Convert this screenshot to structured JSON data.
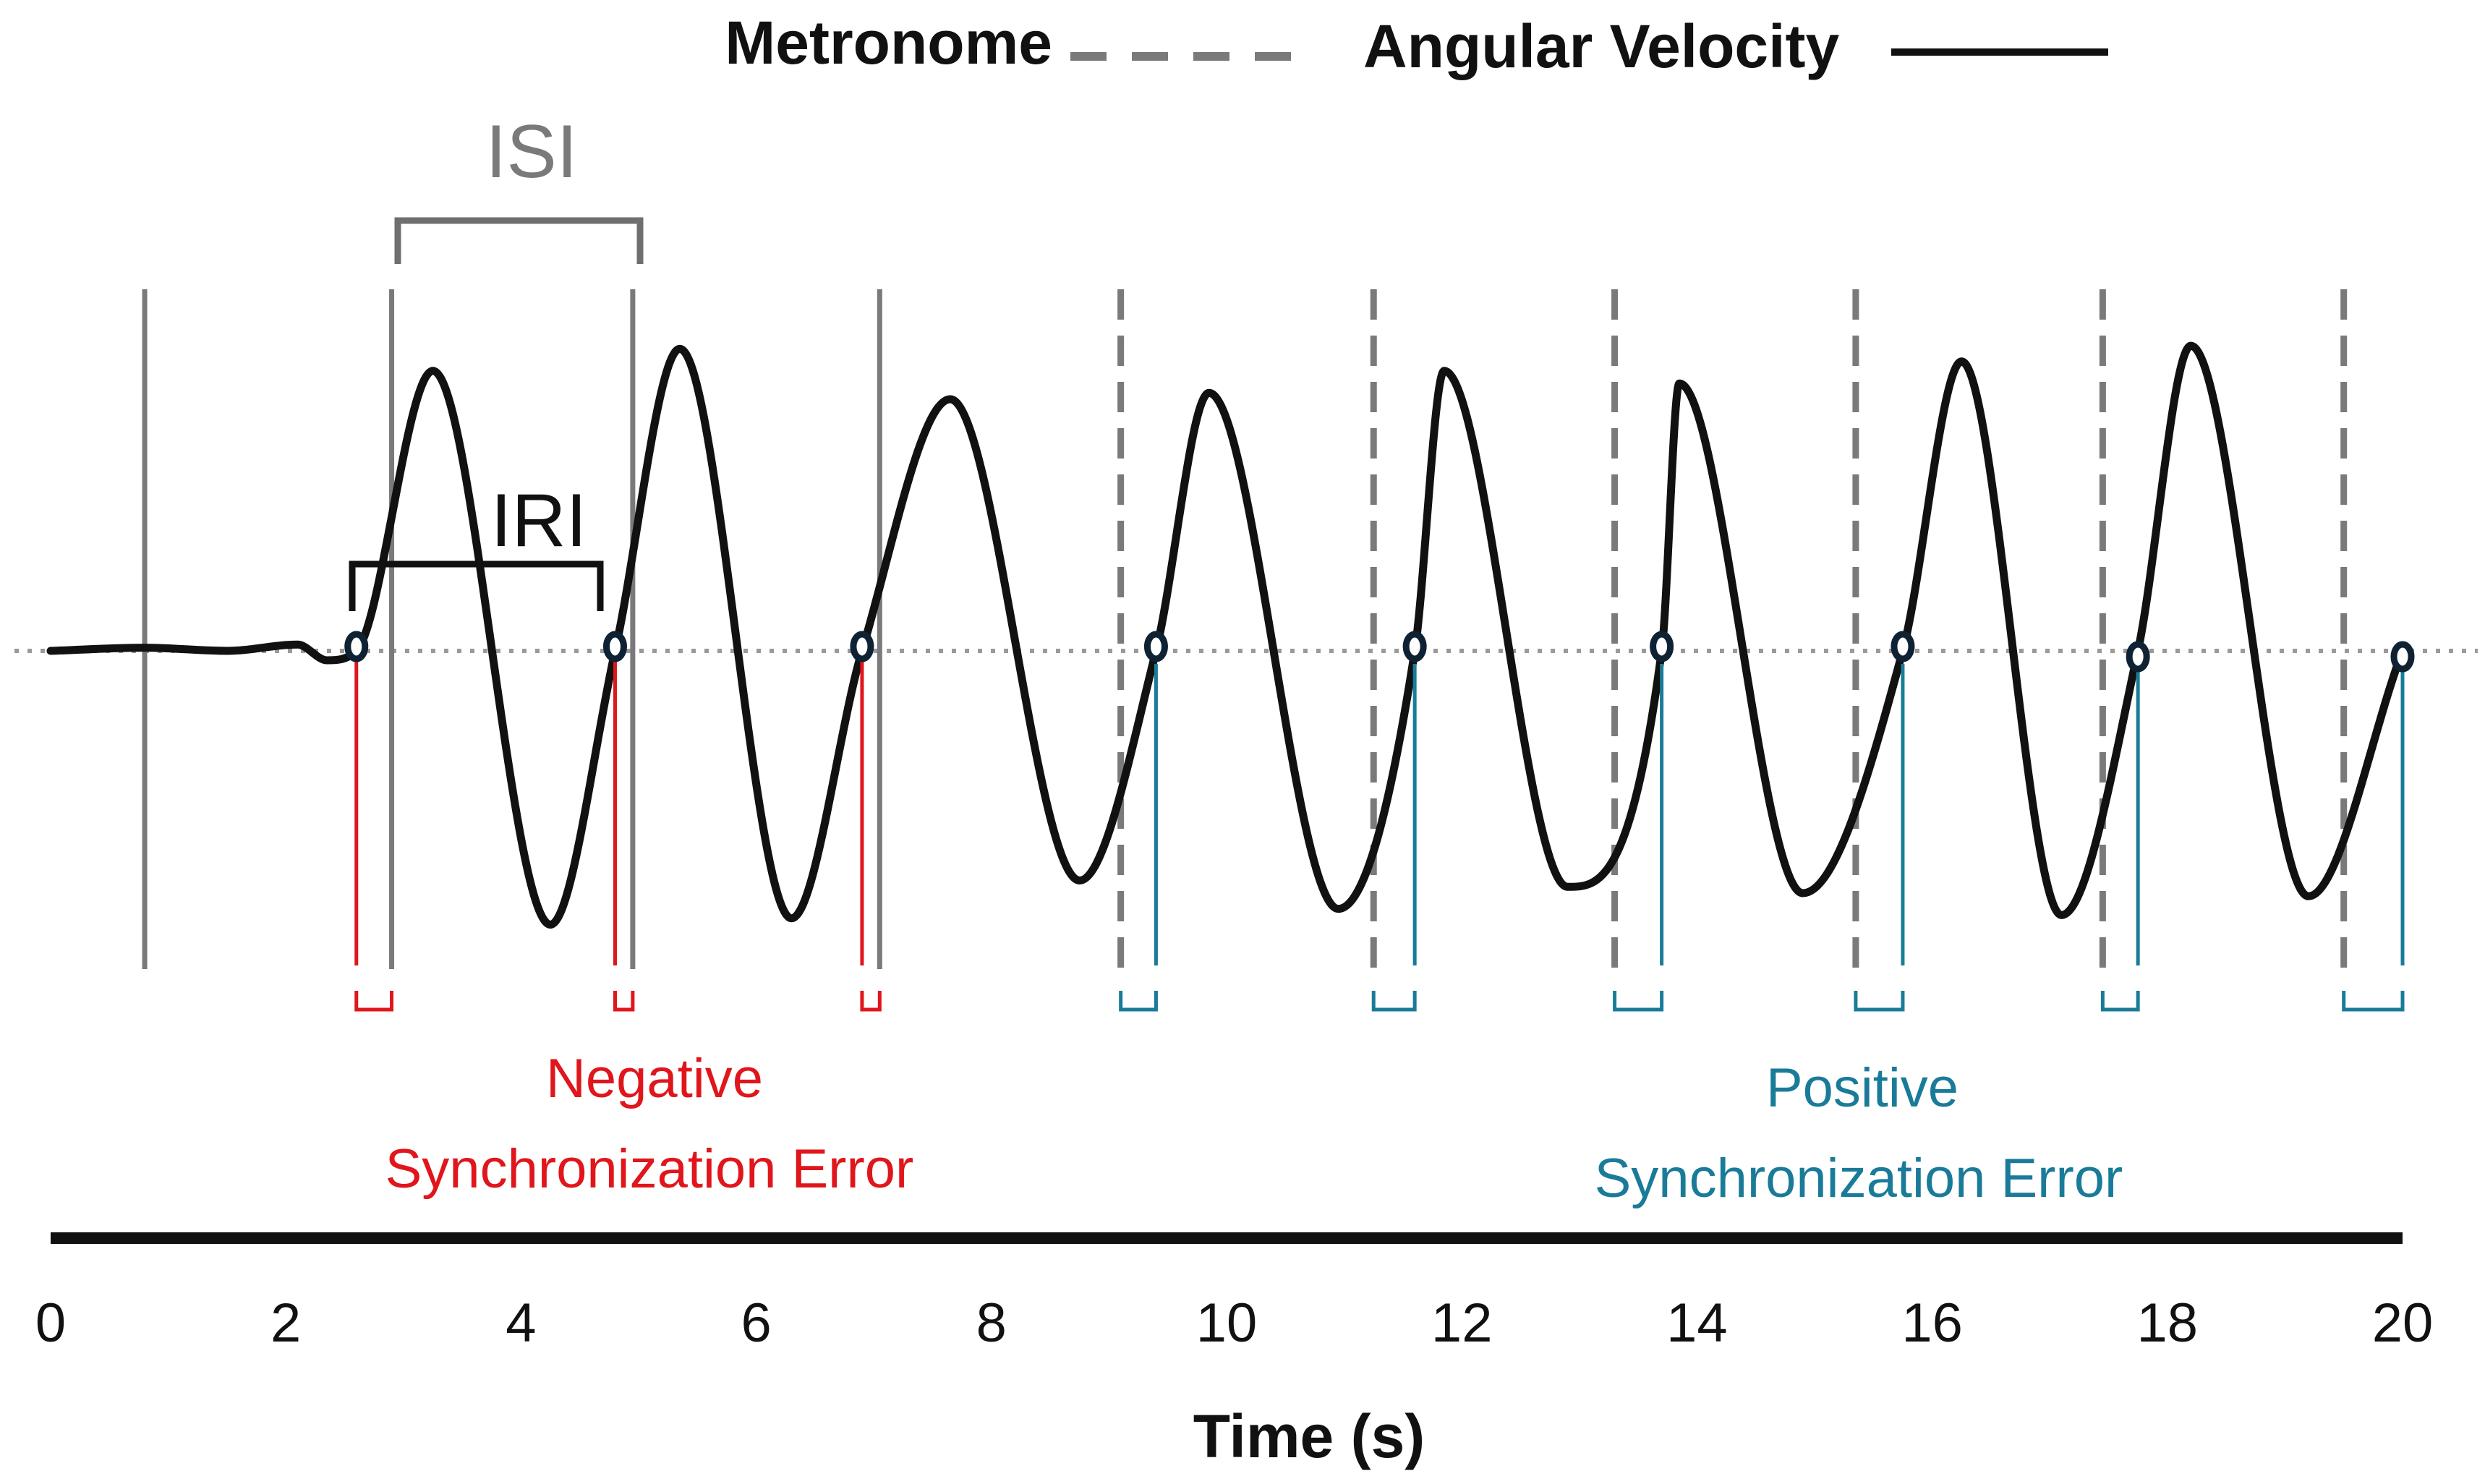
{
  "chart_data": {
    "type": "line",
    "title": "",
    "xlabel": "Time (s)",
    "ylabel": "",
    "xlim": [
      0,
      20
    ],
    "ylim": [
      -1.0,
      1.0
    ],
    "x_ticks": [
      0,
      2,
      4,
      6,
      8,
      10,
      12,
      14,
      16,
      18,
      20
    ],
    "x_tick_labels": [
      "0",
      "2",
      "4",
      "6",
      "8",
      "10",
      "12",
      "14",
      "16",
      "18",
      "20"
    ],
    "legend": [
      {
        "label": "Metronome",
        "style": "dashed",
        "color": "#7a7a7a"
      },
      {
        "label": "Angular Velocity",
        "style": "solid",
        "color": "#111111"
      }
    ],
    "series": [
      {
        "name": "Angular Velocity",
        "x": [
          0.0,
          0.8,
          1.5,
          2.1,
          2.35,
          2.6,
          3.25,
          4.25,
          4.8,
          5.35,
          6.3,
          6.9,
          7.65,
          8.75,
          9.4,
          9.85,
          10.95,
          11.6,
          11.85,
          12.9,
          13.7,
          13.85,
          14.9,
          15.75,
          16.25,
          17.1,
          17.75,
          18.2,
          19.2,
          20.0
        ],
        "y": [
          0.0,
          0.01,
          0.0,
          0.02,
          -0.03,
          0.0,
          0.89,
          -0.87,
          0.0,
          0.96,
          -0.85,
          0.0,
          0.8,
          -0.73,
          0.0,
          0.82,
          -0.82,
          0.0,
          0.89,
          -0.75,
          0.0,
          0.85,
          -0.77,
          0.0,
          0.92,
          -0.84,
          0.0,
          0.97,
          -0.78,
          0.0
        ]
      }
    ],
    "metronome_beats_solid": [
      0.8,
      2.9,
      4.95,
      7.05
    ],
    "metronome_beats_dashed": [
      9.1,
      11.25,
      13.3,
      15.35,
      17.45,
      19.5
    ],
    "zero_crossings": [
      2.6,
      4.8,
      6.9,
      9.4,
      11.6,
      13.7,
      15.75,
      17.75,
      20.0
    ],
    "annotations": {
      "isi": "ISI",
      "iri": "IRI",
      "negative_error": [
        "Negative",
        "Synchronization Error"
      ],
      "positive_error": [
        "Positive",
        "Synchronization Error"
      ]
    },
    "colors": {
      "negative": "#e0161c",
      "positive": "#1a7b99",
      "metronome": "#7a7a7a",
      "signal": "#111111",
      "marker": "#0e2233"
    }
  }
}
